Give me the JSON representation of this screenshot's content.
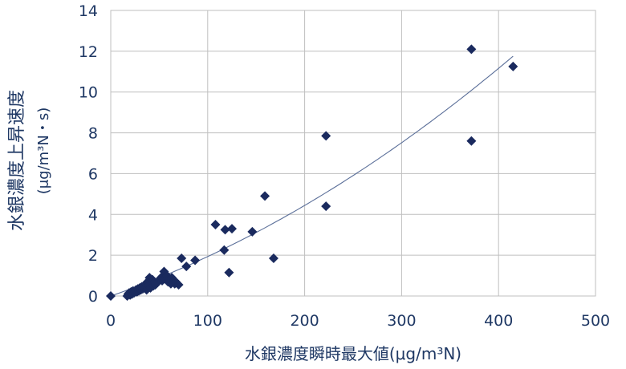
{
  "chart_data": {
    "type": "scatter",
    "title": "",
    "xlabel": "水銀濃度瞬時最大値(μg/m³N)",
    "ylabel_main": "水銀濃度上昇速度",
    "ylabel_unit": "(μg/m³N・s)",
    "xlim": [
      0,
      500
    ],
    "ylim": [
      0,
      14
    ],
    "xticks": [
      0,
      100,
      200,
      300,
      400,
      500
    ],
    "yticks": [
      0,
      2,
      4,
      6,
      8,
      10,
      12,
      14
    ],
    "grid": true,
    "marker": "diamond",
    "colors": {
      "point": "#1a2a5e",
      "trend": "#5b6f99",
      "grid": "#bfbfbf",
      "text": "#1f3864"
    },
    "trendline": {
      "type": "polynomial",
      "from_x": 0,
      "to_x": 415,
      "coefficients": [
        0,
        0.0165,
        2.85e-05
      ]
    },
    "points": [
      [
        0,
        0
      ],
      [
        17,
        0
      ],
      [
        18,
        0.1
      ],
      [
        19,
        0.15
      ],
      [
        20,
        0.05
      ],
      [
        21,
        0.2
      ],
      [
        22,
        0.1
      ],
      [
        23,
        0.25
      ],
      [
        24,
        0.15
      ],
      [
        25,
        0.2
      ],
      [
        26,
        0.3
      ],
      [
        27,
        0.2
      ],
      [
        28,
        0.35
      ],
      [
        29,
        0.25
      ],
      [
        30,
        0.4
      ],
      [
        31,
        0.3
      ],
      [
        32,
        0.45
      ],
      [
        33,
        0.35
      ],
      [
        34,
        0.5
      ],
      [
        35,
        0.4
      ],
      [
        36,
        0.6
      ],
      [
        37,
        0.3
      ],
      [
        38,
        0.7
      ],
      [
        39,
        0.5
      ],
      [
        40,
        0.9
      ],
      [
        41,
        0.4
      ],
      [
        42,
        0.6
      ],
      [
        43,
        0.8
      ],
      [
        44,
        0.5
      ],
      [
        45,
        0.7
      ],
      [
        46,
        0.55
      ],
      [
        48,
        0.65
      ],
      [
        50,
        0.8
      ],
      [
        52,
        0.9
      ],
      [
        53,
        0.75
      ],
      [
        54,
        1.0
      ],
      [
        55,
        1.2
      ],
      [
        56,
        0.85
      ],
      [
        57,
        0.95
      ],
      [
        58,
        1.0
      ],
      [
        59,
        0.7
      ],
      [
        60,
        0.85
      ],
      [
        62,
        0.6
      ],
      [
        63,
        0.9
      ],
      [
        65,
        0.75
      ],
      [
        66,
        0.6
      ],
      [
        67,
        0.7
      ],
      [
        70,
        0.55
      ],
      [
        73,
        1.85
      ],
      [
        78,
        1.45
      ],
      [
        87,
        1.75
      ],
      [
        108,
        3.5
      ],
      [
        117,
        2.25
      ],
      [
        118,
        3.25
      ],
      [
        122,
        1.15
      ],
      [
        125,
        3.3
      ],
      [
        146,
        3.15
      ],
      [
        168,
        1.85
      ],
      [
        159,
        4.9
      ],
      [
        222,
        7.85
      ],
      [
        222,
        4.4
      ],
      [
        372,
        12.1
      ],
      [
        372,
        7.6
      ],
      [
        415,
        11.25
      ]
    ]
  }
}
